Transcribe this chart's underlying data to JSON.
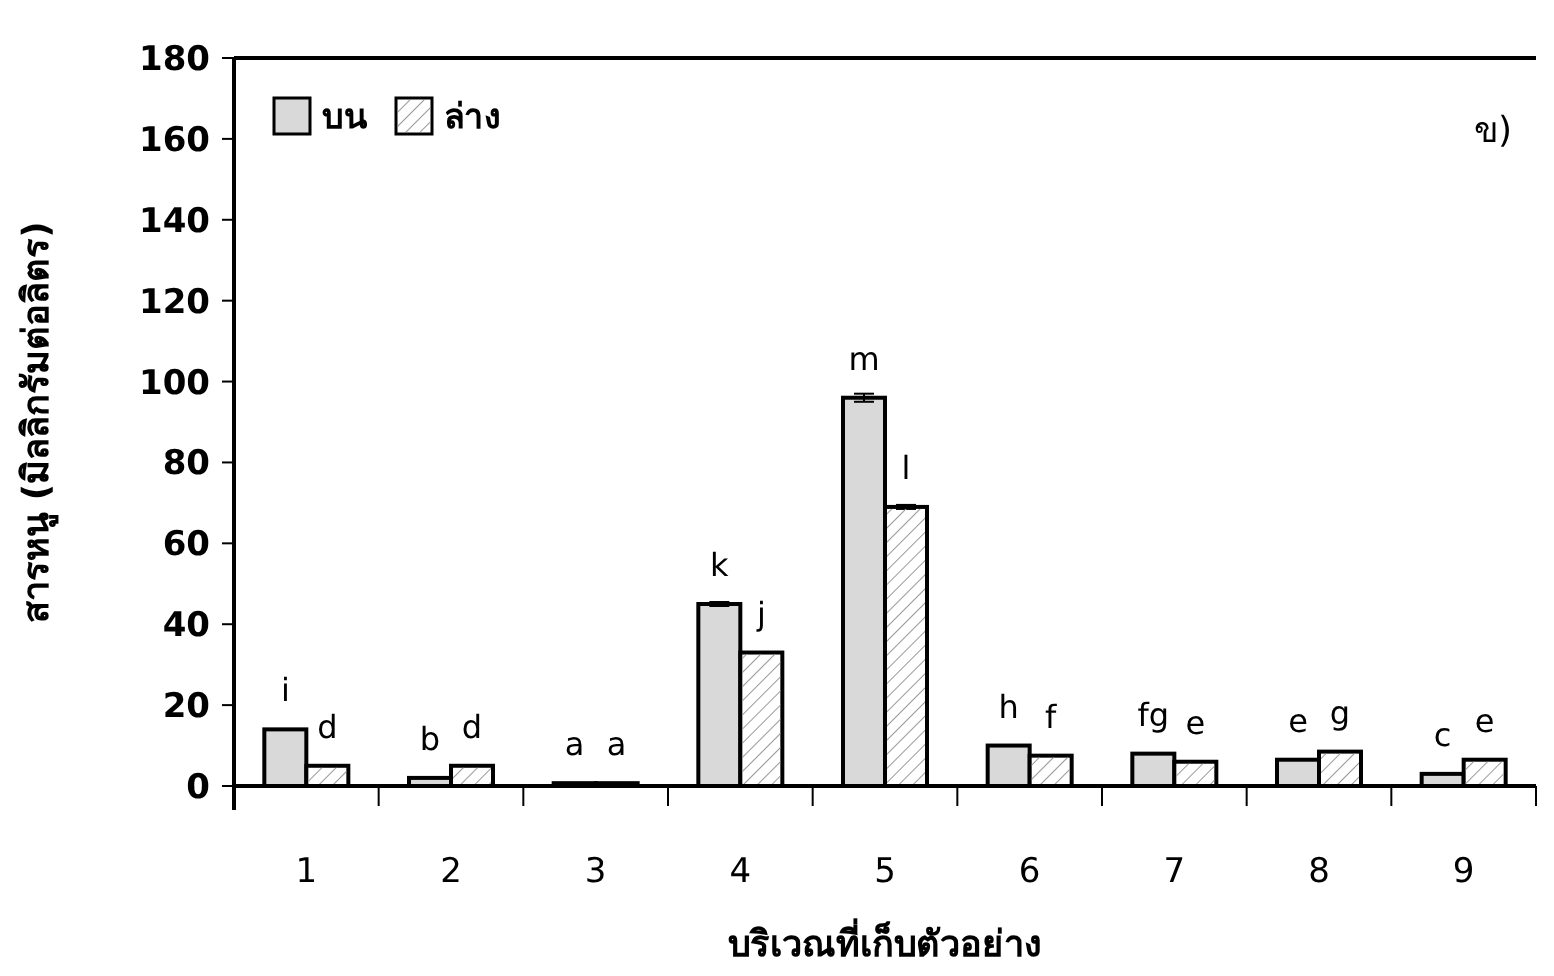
{
  "chart_data": {
    "type": "bar",
    "xlabel": "บริเวณที่เก็บตัวอย่าง",
    "ylabel": "สารหนู (มิลลิกรัมต่อลิตร)",
    "categories": [
      "1",
      "2",
      "3",
      "4",
      "5",
      "6",
      "7",
      "8",
      "9"
    ],
    "series": [
      {
        "name": "บน",
        "color": "#d9d9d9",
        "values": [
          14,
          2,
          0.7,
          45,
          96,
          10,
          8,
          6.5,
          3
        ],
        "errors": [
          null,
          null,
          null,
          0.5,
          1,
          null,
          null,
          null,
          null
        ],
        "value_labels": [
          "i",
          "b",
          "a",
          "k",
          "m",
          "h",
          "fg",
          "e",
          "c"
        ]
      },
      {
        "name": "ล่าง",
        "color": "#ffffff",
        "values": [
          5,
          5,
          0.7,
          33,
          69,
          7.5,
          6,
          8.5,
          6.5
        ],
        "errors": [
          null,
          null,
          null,
          null,
          0.5,
          null,
          null,
          null,
          null
        ],
        "value_labels": [
          "d",
          "d",
          "a",
          "j",
          "l",
          "f",
          "e",
          "g",
          "e"
        ]
      }
    ],
    "ylim": [
      0,
      180
    ],
    "yticks": [
      0,
      20,
      40,
      60,
      80,
      100,
      120,
      140,
      160,
      180
    ],
    "annotations": [
      "ข)"
    ],
    "legend": "top left",
    "grid": false
  }
}
